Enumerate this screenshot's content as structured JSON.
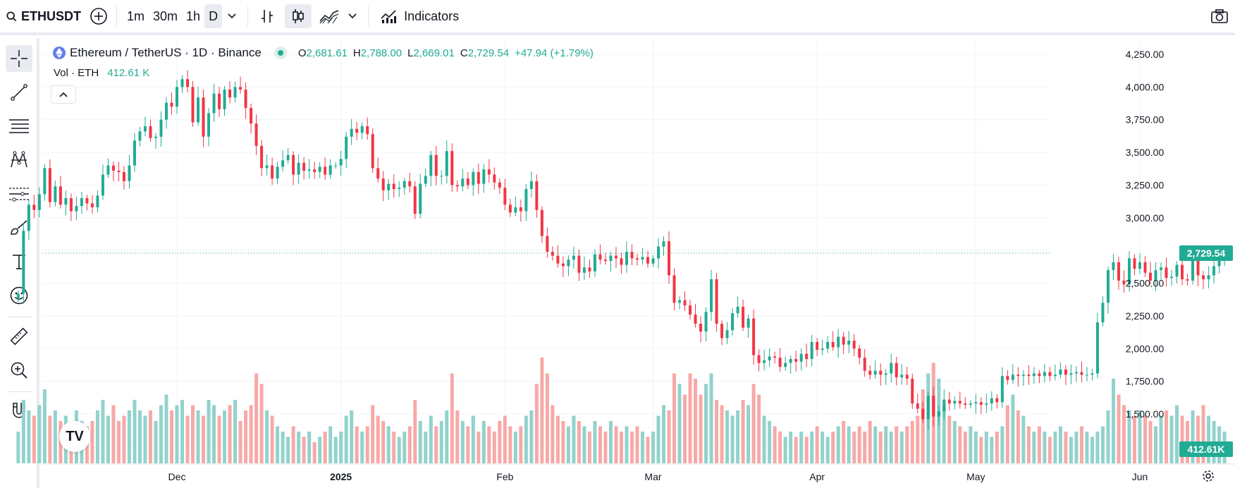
{
  "toolbar": {
    "symbol": "ETHUSDT",
    "timeframes": [
      "1m",
      "30m",
      "1h",
      "D"
    ],
    "active_timeframe": "D",
    "indicators_label": "Indicators"
  },
  "legend": {
    "title": "Ethereum / TetherUS · 1D · Binance",
    "ohlc": [
      {
        "key": "O",
        "value": "2,681.61"
      },
      {
        "key": "H",
        "value": "2,788.00"
      },
      {
        "key": "L",
        "value": "2,669.01"
      },
      {
        "key": "C",
        "value": "2,729.54"
      }
    ],
    "change": "+47.94 (+1.79%)",
    "volume_label": "Vol · ETH",
    "volume_value": "412.61 K"
  },
  "colors": {
    "up": "#22ab94",
    "down": "#f23645",
    "vol_up": "#92d2cc",
    "vol_down": "#f7a9a7"
  },
  "last_price_label": "2,729.54",
  "last_volume_label": "412.61K",
  "chart_data": {
    "type": "candlestick",
    "symbol": "ETHUSDT",
    "interval": "1D",
    "y_ticks": [
      "4,250.00",
      "4,000.00",
      "3,750.00",
      "3,500.00",
      "3,250.00",
      "3,000.00",
      "2,500.00",
      "2,250.00",
      "2,000.00",
      "1,750.00",
      "1,500.00"
    ],
    "y_tick_values": [
      4250,
      4000,
      3750,
      3500,
      3250,
      3000,
      2500,
      2250,
      2000,
      1750,
      1500
    ],
    "x_ticks": [
      {
        "label": "Dec",
        "date": "2024-12-01"
      },
      {
        "label": "2025",
        "date": "2025-01-01"
      },
      {
        "label": "Feb",
        "date": "2025-02-01"
      },
      {
        "label": "Mar",
        "date": "2025-03-01"
      },
      {
        "label": "Apr",
        "date": "2025-04-01"
      },
      {
        "label": "May",
        "date": "2025-05-01"
      },
      {
        "label": "Jun",
        "date": "2025-06-01"
      }
    ],
    "start_date": "2024-11-01",
    "last_price": 2729.54,
    "closes": [
      2420,
      2900,
      3100,
      3060,
      3180,
      3380,
      3120,
      3240,
      3100,
      3150,
      3050,
      3090,
      3150,
      3110,
      3080,
      3170,
      3330,
      3400,
      3360,
      3350,
      3280,
      3400,
      3590,
      3660,
      3700,
      3610,
      3620,
      3750,
      3880,
      3850,
      4000,
      4060,
      4000,
      3730,
      3920,
      3620,
      3800,
      3950,
      3830,
      3980,
      3920,
      4000,
      3980,
      3840,
      3720,
      3550,
      3380,
      3400,
      3300,
      3390,
      3440,
      3480,
      3330,
      3420,
      3360,
      3370,
      3350,
      3390,
      3330,
      3400,
      3400,
      3450,
      3620,
      3680,
      3650,
      3700,
      3640,
      3380,
      3300,
      3210,
      3260,
      3220,
      3230,
      3280,
      3240,
      3030,
      3260,
      3320,
      3480,
      3320,
      3320,
      3510,
      3250,
      3240,
      3300,
      3250,
      3350,
      3260,
      3370,
      3330,
      3270,
      3230,
      3100,
      3040,
      3080,
      3050,
      3220,
      3280,
      3060,
      2860,
      2740,
      2710,
      2650,
      2630,
      2680,
      2710,
      2580,
      2620,
      2590,
      2720,
      2680,
      2670,
      2710,
      2690,
      2640,
      2740,
      2690,
      2680,
      2700,
      2650,
      2690,
      2780,
      2820,
      2560,
      2350,
      2370,
      2330,
      2260,
      2190,
      2130,
      2280,
      2530,
      2190,
      2080,
      2140,
      2270,
      2320,
      2160,
      2230,
      1950,
      1890,
      1910,
      1940,
      1930,
      1860,
      1890,
      1920,
      1900,
      1960,
      1920,
      2050,
      1990,
      2000,
      2050,
      2010,
      2090,
      2030,
      2060,
      2000,
      1930,
      1830,
      1800,
      1830,
      1800,
      1810,
      1890,
      1780,
      1800,
      1770,
      1580,
      1540,
      1460,
      1640,
      1480,
      1520,
      1610,
      1580,
      1600,
      1580,
      1570,
      1580,
      1590,
      1570,
      1580,
      1620,
      1590,
      1790,
      1760,
      1800,
      1790,
      1800,
      1790,
      1810,
      1790,
      1820,
      1790,
      1800,
      1840,
      1800,
      1810,
      1820,
      1800,
      1800,
      1810,
      2200,
      2350,
      2600,
      2660,
      2520,
      2490,
      2690,
      2610,
      2660,
      2580,
      2520,
      2600,
      2620,
      2540,
      2550,
      2640,
      2530,
      2520,
      2680,
      2560,
      2530,
      2560,
      2630,
      2680,
      2729.54
    ],
    "volumes_rel": [
      0.3,
      0.6,
      0.5,
      0.45,
      0.55,
      0.7,
      0.45,
      0.5,
      0.4,
      0.45,
      0.35,
      0.5,
      0.4,
      0.35,
      0.4,
      0.5,
      0.6,
      0.45,
      0.55,
      0.4,
      0.45,
      0.5,
      0.6,
      0.5,
      0.45,
      0.5,
      0.4,
      0.55,
      0.65,
      0.5,
      0.55,
      0.6,
      0.45,
      0.55,
      0.5,
      0.45,
      0.6,
      0.55,
      0.45,
      0.5,
      0.55,
      0.6,
      0.4,
      0.5,
      0.55,
      0.85,
      0.75,
      0.5,
      0.45,
      0.35,
      0.3,
      0.25,
      0.35,
      0.3,
      0.25,
      0.3,
      0.2,
      0.25,
      0.3,
      0.35,
      0.25,
      0.3,
      0.45,
      0.5,
      0.35,
      0.3,
      0.35,
      0.55,
      0.45,
      0.4,
      0.35,
      0.3,
      0.25,
      0.3,
      0.35,
      0.6,
      0.4,
      0.3,
      0.45,
      0.35,
      0.4,
      0.5,
      0.85,
      0.5,
      0.4,
      0.35,
      0.45,
      0.3,
      0.4,
      0.35,
      0.3,
      0.4,
      0.45,
      0.35,
      0.3,
      0.35,
      0.45,
      0.5,
      0.75,
      1.0,
      0.85,
      0.55,
      0.45,
      0.4,
      0.35,
      0.45,
      0.4,
      0.35,
      0.3,
      0.4,
      0.35,
      0.3,
      0.4,
      0.35,
      0.3,
      0.35,
      0.3,
      0.35,
      0.3,
      0.25,
      0.3,
      0.45,
      0.55,
      0.5,
      0.85,
      0.75,
      0.65,
      0.85,
      0.8,
      0.65,
      0.75,
      0.85,
      0.6,
      0.55,
      0.5,
      0.45,
      0.5,
      0.6,
      0.55,
      0.75,
      0.65,
      0.45,
      0.4,
      0.35,
      0.3,
      0.25,
      0.3,
      0.25,
      0.3,
      0.25,
      0.3,
      0.35,
      0.3,
      0.25,
      0.3,
      0.35,
      0.4,
      0.35,
      0.3,
      0.35,
      0.3,
      0.4,
      0.35,
      0.3,
      0.35,
      0.3,
      0.35,
      0.3,
      0.35,
      0.4,
      0.45,
      0.7,
      0.85,
      0.95,
      0.8,
      0.55,
      0.45,
      0.4,
      0.35,
      0.3,
      0.35,
      0.3,
      0.25,
      0.3,
      0.25,
      0.3,
      0.35,
      0.55,
      0.65,
      0.5,
      0.45,
      0.35,
      0.3,
      0.35,
      0.3,
      0.25,
      0.3,
      0.35,
      0.3,
      0.25,
      0.3,
      0.35,
      0.3,
      0.25,
      0.3,
      0.35,
      0.5,
      0.8,
      0.65,
      0.55,
      0.5,
      0.45,
      0.5,
      0.45,
      0.4,
      0.35,
      0.45,
      0.5,
      0.45,
      0.55,
      0.45,
      0.4,
      0.5,
      0.45,
      0.55,
      0.45,
      0.4,
      0.35,
      0.3,
      0.35,
      0.25
    ]
  }
}
